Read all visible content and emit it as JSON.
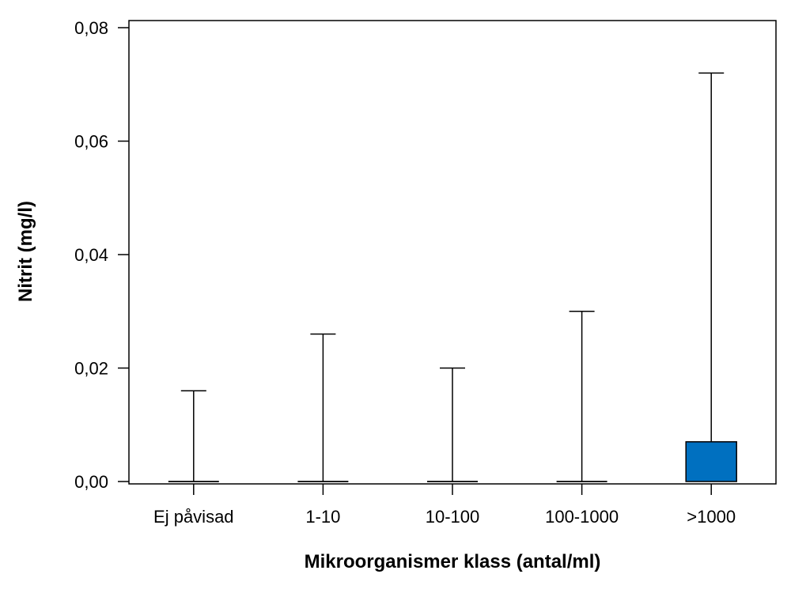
{
  "chart_data": {
    "type": "boxplot",
    "xlabel": "Mikroorganismer klass (antal/ml)",
    "ylabel": "Nitrit (mg/l)",
    "ylim": [
      0,
      0.08
    ],
    "yticks": [
      "0,00",
      "0,02",
      "0,04",
      "0,06",
      "0,08"
    ],
    "ytick_values": [
      0,
      0.02,
      0.04,
      0.06,
      0.08
    ],
    "categories": [
      "Ej påvisad",
      "1-10",
      "10-100",
      "100-1000",
      ">1000"
    ],
    "boxes": [
      {
        "category": "Ej påvisad",
        "min": 0,
        "q1": 0,
        "median": 0,
        "q3": 0,
        "max": 0.016
      },
      {
        "category": "1-10",
        "min": 0,
        "q1": 0,
        "median": 0,
        "q3": 0,
        "max": 0.026
      },
      {
        "category": "10-100",
        "min": 0,
        "q1": 0,
        "median": 0,
        "q3": 0,
        "max": 0.02
      },
      {
        "category": "100-1000",
        "min": 0,
        "q1": 0,
        "median": 0,
        "q3": 0,
        "max": 0.03
      },
      {
        "category": ">1000",
        "min": 0,
        "q1": 0,
        "median": 0,
        "q3": 0.007,
        "max": 0.072
      }
    ],
    "box_color": "#0070C0",
    "grid": false,
    "legend": "none"
  }
}
